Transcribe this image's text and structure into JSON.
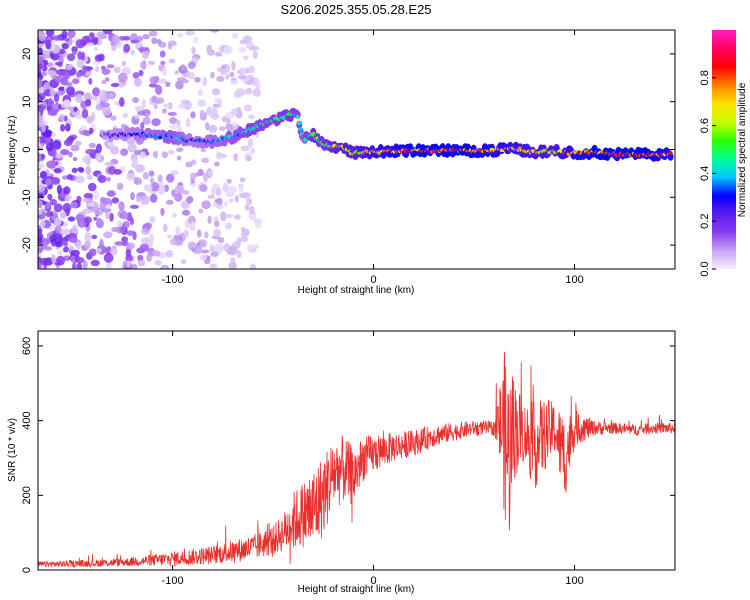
{
  "title": "S206.2025.355.05.28.E25",
  "chart_data": [
    {
      "type": "heatmap",
      "name": "spectrogram",
      "xlabel": "Height of straight line (km)",
      "ylabel": "Frequency (Hz)",
      "xlim": [
        -167,
        150
      ],
      "ylim": [
        -25,
        25
      ],
      "xticks": [
        -100,
        0,
        100
      ],
      "xtick_labels": [
        "-100",
        "0",
        "100"
      ],
      "yticks": [
        -20,
        -10,
        0,
        10,
        20
      ],
      "ytick_labels": [
        "-20",
        "-10",
        "0",
        "10",
        "20"
      ],
      "colorbar": {
        "label": "Normalized spectral amplitude",
        "range": [
          0,
          1
        ],
        "ticks": [
          0.0,
          0.2,
          0.4,
          0.6,
          0.8
        ],
        "tick_labels": [
          "0.0",
          "0.2",
          "0.4",
          "0.6",
          "0.8"
        ],
        "colormap": [
          "#f5f0ff",
          "#c7a4f2",
          "#8a3df0",
          "#5b1cf0",
          "#0000ff",
          "#00c8ff",
          "#00ff90",
          "#30ff00",
          "#c8ff00",
          "#ffe000",
          "#ff8000",
          "#ff0000",
          "#ff0060",
          "#ff20c0"
        ]
      },
      "ridge": {
        "description": "Dominant frequency track (Hz) vs height (km)",
        "x": [
          -135,
          -120,
          -110,
          -100,
          -90,
          -80,
          -70,
          -60,
          -50,
          -42,
          -38,
          -35,
          -30,
          -25,
          -20,
          -15,
          -10,
          -5,
          0,
          10,
          20,
          30,
          40,
          50,
          60,
          70,
          80,
          90,
          100,
          110,
          120,
          130,
          140,
          148
        ],
        "y": [
          3.0,
          3.2,
          3.0,
          2.6,
          1.8,
          1.6,
          2.6,
          4.5,
          6.0,
          7.2,
          7.5,
          2.0,
          3.2,
          1.2,
          0.6,
          0.5,
          -0.8,
          -0.5,
          -0.5,
          -0.3,
          -0.2,
          -0.2,
          -0.2,
          -0.3,
          -0.2,
          0.2,
          -0.6,
          -0.3,
          -0.8,
          -0.6,
          -1.0,
          -1.0,
          -1.0,
          -1.0
        ],
        "amplitude": [
          0.25,
          0.3,
          0.35,
          0.4,
          0.3,
          0.35,
          0.4,
          0.45,
          0.45,
          0.5,
          0.45,
          0.4,
          0.55,
          0.5,
          0.6,
          0.7,
          0.65,
          0.7,
          0.75,
          0.8,
          0.85,
          0.85,
          0.9,
          0.85,
          0.8,
          0.75,
          0.7,
          0.7,
          0.8,
          0.85,
          0.9,
          0.9,
          0.85,
          0.8
        ]
      }
    },
    {
      "type": "line",
      "name": "snr",
      "xlabel": "Height of straight line (km)",
      "ylabel": "SNR (10 * v/v)",
      "xlim": [
        -167,
        150
      ],
      "ylim": [
        0,
        640
      ],
      "xticks": [
        -100,
        0,
        100
      ],
      "xtick_labels": [
        "-100",
        "0",
        "100"
      ],
      "yticks": [
        0,
        200,
        400,
        600
      ],
      "ytick_labels": [
        "0",
        "200",
        "400",
        "600"
      ],
      "color": "#e8312f",
      "envelope": {
        "x": [
          -167,
          -140,
          -120,
          -100,
          -80,
          -60,
          -50,
          -45,
          -40,
          -35,
          -30,
          -25,
          -20,
          -15,
          -10,
          -5,
          0,
          10,
          20,
          30,
          40,
          50,
          60,
          63,
          65,
          67,
          70,
          75,
          80,
          85,
          90,
          95,
          100,
          110,
          120,
          130,
          140,
          150
        ],
        "y": [
          15,
          18,
          22,
          30,
          40,
          60,
          80,
          100,
          130,
          150,
          160,
          200,
          260,
          270,
          250,
          300,
          310,
          330,
          340,
          360,
          370,
          380,
          380,
          390,
          370,
          300,
          380,
          370,
          330,
          360,
          380,
          300,
          380,
          380,
          380,
          375,
          380,
          380
        ],
        "noise": [
          8,
          10,
          12,
          20,
          25,
          35,
          40,
          50,
          80,
          90,
          120,
          110,
          100,
          90,
          80,
          60,
          50,
          40,
          35,
          30,
          25,
          20,
          20,
          120,
          220,
          260,
          140,
          80,
          120,
          100,
          70,
          120,
          50,
          20,
          15,
          15,
          15,
          15
        ]
      }
    }
  ]
}
